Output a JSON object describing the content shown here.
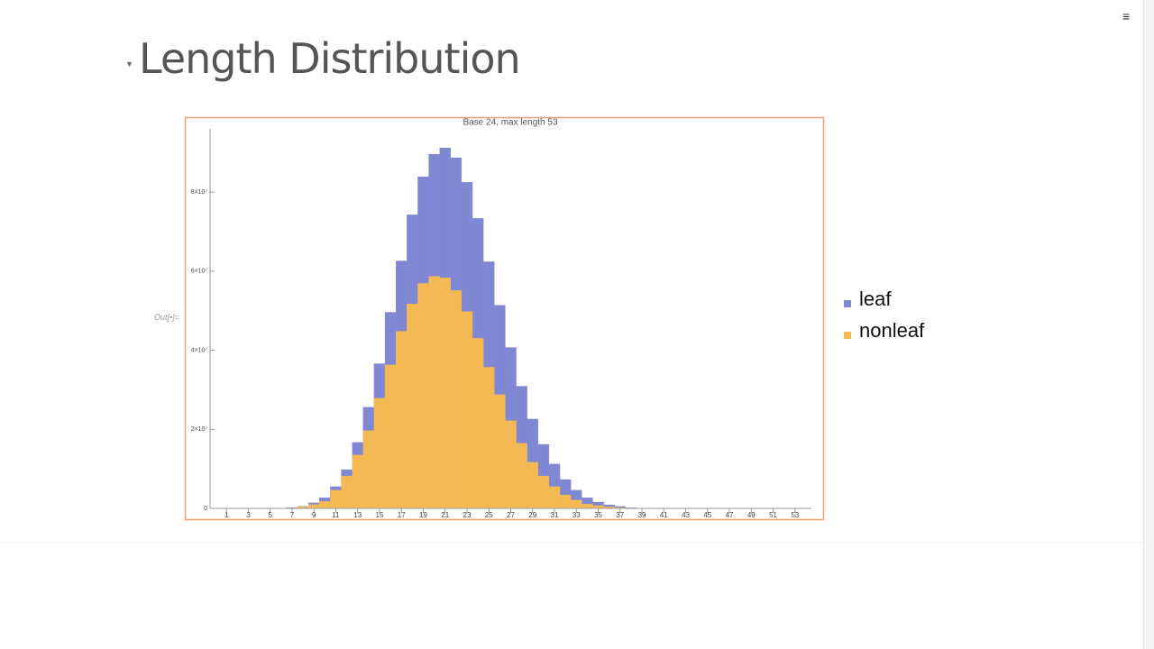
{
  "header": {
    "title": "Length Distribution",
    "cell_label": "Out[•]="
  },
  "chart_data": {
    "type": "histogram",
    "title": "Base 24, max length 53",
    "bins": [
      0.5,
      1.5,
      2.5,
      3.5,
      4.5,
      5.5,
      6.5,
      7.5,
      8.5,
      9.5,
      10.5,
      11.5,
      12.5,
      13.5,
      14.5,
      15.5,
      16.5,
      17.5,
      18.5,
      19.5,
      20.5,
      21.5,
      22.5,
      23.5,
      24.5,
      25.5,
      26.5,
      27.5,
      28.5,
      29.5,
      30.5,
      31.5,
      32.5,
      33.5,
      34.5,
      35.5,
      36.5,
      37.5,
      38.5,
      39.5,
      40.5,
      41.5,
      42.5,
      43.5,
      44.5,
      45.5,
      46.5,
      47.5,
      48.5,
      49.5,
      50.5,
      51.5,
      52.5,
      53.5
    ],
    "layout": "overlapped",
    "series": [
      {
        "name": "leaf",
        "color": "#8087d3",
        "values": [
          0,
          0,
          0,
          0,
          0,
          0,
          200000,
          500000,
          1400000,
          2700000,
          5500000,
          9800000,
          16700000,
          25600000,
          36600000,
          49600000,
          62600000,
          74300000,
          83900000,
          89600000,
          91200000,
          88700000,
          82500000,
          73400000,
          62400000,
          51400000,
          40700000,
          30900000,
          22600000,
          16200000,
          11200000,
          7300000,
          4600000,
          2700000,
          1600000,
          900000,
          500000,
          200000,
          0,
          0,
          0,
          0,
          0,
          0,
          0,
          0,
          0,
          0,
          0,
          0,
          0,
          0,
          0
        ]
      },
      {
        "name": "nonleaf",
        "color": "#f4b952",
        "values": [
          0,
          0,
          0,
          0,
          0,
          0,
          100000,
          400000,
          1000000,
          1800000,
          4600000,
          8200000,
          13500000,
          19700000,
          27900000,
          36300000,
          44800000,
          51700000,
          56900000,
          58700000,
          58300000,
          55100000,
          49800000,
          43000000,
          35700000,
          28800000,
          22200000,
          16500000,
          11700000,
          8200000,
          5500000,
          3400000,
          2100000,
          1100000,
          700000,
          400000,
          200000,
          100000,
          0,
          0,
          0,
          0,
          0,
          0,
          0,
          0,
          0,
          0,
          0,
          0,
          0,
          0,
          0
        ]
      }
    ],
    "xlim": [
      -0.5,
      54.5
    ],
    "xticks": [
      1,
      3,
      5,
      7,
      9,
      11,
      13,
      15,
      17,
      19,
      21,
      23,
      25,
      27,
      29,
      31,
      33,
      35,
      37,
      39,
      41,
      43,
      45,
      47,
      49,
      51,
      53
    ],
    "ylim": [
      0,
      96000000
    ],
    "yticks": [
      0,
      {
        "value": 20000000,
        "label": "2×10⁷"
      },
      {
        "value": 40000000,
        "label": "4×10⁷"
      },
      {
        "value": 60000000,
        "label": "6×10⁷"
      },
      {
        "value": 80000000,
        "label": "8×10⁷"
      }
    ],
    "legend": "right"
  }
}
